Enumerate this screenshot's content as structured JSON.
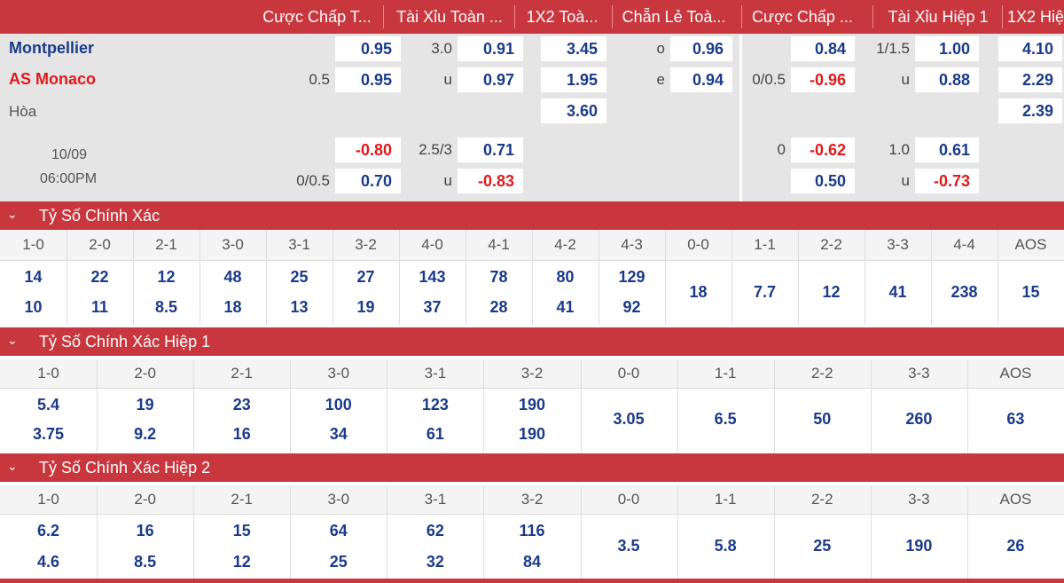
{
  "header": {
    "cols": [
      "Cược Chấp T...",
      "Tài Xỉu Toàn ...",
      "1X2 Toà...",
      "Chẵn Lẻ Toà...",
      "Cược Chấp ...",
      "Tài Xỉu Hiệp 1",
      "1X2 Hiệ"
    ]
  },
  "match": {
    "home": "Montpellier",
    "away": "AS Monaco",
    "draw": "Hòa",
    "date": "10/09",
    "time": "06:00PM",
    "colors": {
      "home": "#1a3a8a",
      "away": "#e0191c"
    }
  },
  "odds": {
    "row1": {
      "ah_line": "",
      "ah": "0.95",
      "ou_line": "3.0",
      "ou": "0.91",
      "x12": "3.45",
      "oe_line": "o",
      "oe": "0.96",
      "h1ah_line": "",
      "h1ah": "0.84",
      "h1ou_line": "1/1.5",
      "h1ou": "1.00",
      "h1x12": "4.10"
    },
    "row2": {
      "ah_line": "0.5",
      "ah": "0.95",
      "ou_line": "u",
      "ou": "0.97",
      "x12": "1.95",
      "oe_line": "e",
      "oe": "0.94",
      "h1ah_line": "0/0.5",
      "h1ah": "-0.96",
      "h1ou_line": "u",
      "h1ou": "0.88",
      "h1x12": "2.29"
    },
    "row3": {
      "x12": "3.60",
      "h1x12": "2.39"
    },
    "row4": {
      "ah_line": "",
      "ah": "-0.80",
      "ou_line": "2.5/3",
      "ou": "0.71",
      "h1ah_line": "0",
      "h1ah": "-0.62",
      "h1ou_line": "1.0",
      "h1ou": "0.61"
    },
    "row5": {
      "ah_line": "0/0.5",
      "ah": "0.70",
      "ou_line": "u",
      "ou": "-0.83",
      "h1ah_line": "",
      "h1ah": "0.50",
      "h1ou_line": "u",
      "h1ou": "-0.73"
    }
  },
  "sections": [
    {
      "title": "Tỷ Số Chính Xác",
      "labels": [
        "1-0",
        "2-0",
        "2-1",
        "3-0",
        "3-1",
        "3-2",
        "4-0",
        "4-1",
        "4-2",
        "4-3",
        "0-0",
        "1-1",
        "2-2",
        "3-3",
        "4-4",
        "AOS"
      ],
      "top": [
        "14",
        "22",
        "12",
        "48",
        "25",
        "27",
        "143",
        "78",
        "80",
        "129",
        "18",
        "7.7",
        "12",
        "41",
        "238",
        "15"
      ],
      "bottom": [
        "10",
        "11",
        "8.5",
        "18",
        "13",
        "19",
        "37",
        "28",
        "41",
        "92",
        "",
        "",
        "",
        "",
        "",
        ""
      ]
    },
    {
      "title": "Tỷ Số Chính Xác Hiệp 1",
      "labels": [
        "1-0",
        "2-0",
        "2-1",
        "3-0",
        "3-1",
        "3-2",
        "0-0",
        "1-1",
        "2-2",
        "3-3",
        "AOS"
      ],
      "top": [
        "5.4",
        "19",
        "23",
        "100",
        "123",
        "190",
        "3.05",
        "6.5",
        "50",
        "260",
        "63"
      ],
      "bottom": [
        "3.75",
        "9.2",
        "16",
        "34",
        "61",
        "190",
        "",
        "",
        "",
        "",
        ""
      ]
    },
    {
      "title": "Tỷ Số Chính Xác Hiệp 2",
      "labels": [
        "1-0",
        "2-0",
        "2-1",
        "3-0",
        "3-1",
        "3-2",
        "0-0",
        "1-1",
        "2-2",
        "3-3",
        "AOS"
      ],
      "top": [
        "6.2",
        "16",
        "15",
        "64",
        "62",
        "116",
        "3.5",
        "5.8",
        "25",
        "190",
        "26"
      ],
      "bottom": [
        "4.6",
        "8.5",
        "12",
        "25",
        "32",
        "84",
        "",
        "",
        "",
        "",
        ""
      ]
    }
  ],
  "icons": {
    "collapse": "chevron-down-icon"
  },
  "colors": {
    "accent": "#c8373e",
    "odds": "#1a3a8a",
    "negative": "#e0191c"
  }
}
